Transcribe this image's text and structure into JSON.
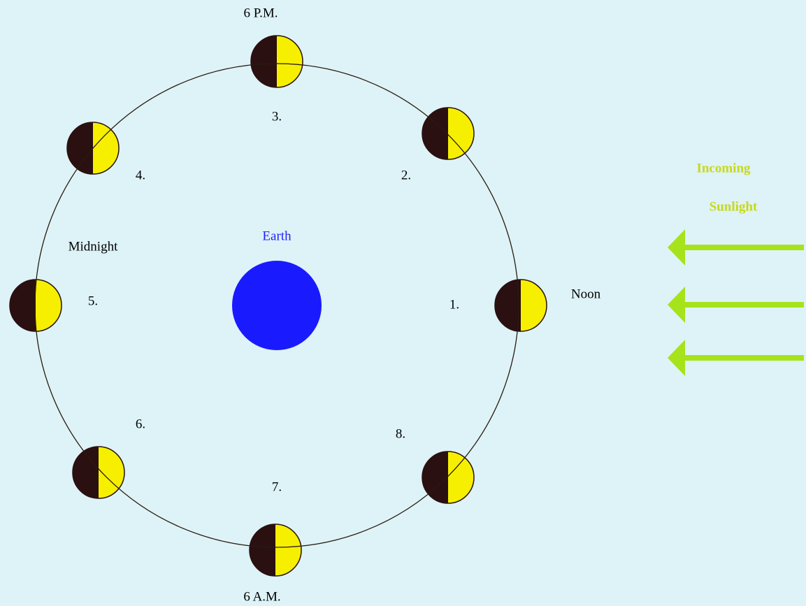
{
  "title_top": "6 P.M.",
  "title_bottom": "6 A.M.",
  "noon": "Noon",
  "midnight": "Midnight",
  "earth": "Earth",
  "positions": [
    "1.",
    "2.",
    "3.",
    "4.",
    "5.",
    "6.",
    "7.",
    "8."
  ],
  "sunlight": [
    "Incoming",
    "Sunlight"
  ]
}
